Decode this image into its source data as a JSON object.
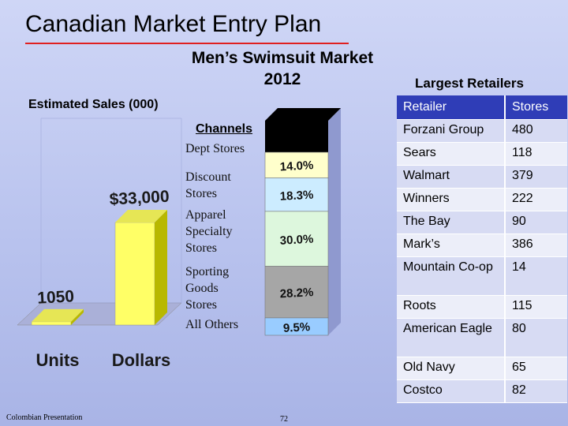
{
  "title": "Canadian Market Entry Plan",
  "subtitle_line1": "Men’s Swimsuit Market",
  "subtitle_line2": "2012",
  "sales_label": "Estimated Sales (000)",
  "footer_left": "Colombian Presentation",
  "page_number": "72",
  "retailers": {
    "heading": "Largest Retailers",
    "columns": [
      "Retailer",
      "Stores"
    ],
    "rows": [
      {
        "name": "Forzani Group",
        "stores": "480"
      },
      {
        "name": "Sears",
        "stores": "118"
      },
      {
        "name": "Walmart",
        "stores": "379"
      },
      {
        "name": "Winners",
        "stores": "222"
      },
      {
        "name": "The Bay",
        "stores": "90"
      },
      {
        "name": "Mark’s",
        "stores": "386"
      },
      {
        "name": "Mountain Co-op",
        "stores": "14"
      },
      {
        "name": "Roots",
        "stores": "115"
      },
      {
        "name": "American Eagle",
        "stores": "80"
      },
      {
        "name": "Old Navy",
        "stores": "65"
      },
      {
        "name": "Costco",
        "stores": "82"
      }
    ]
  },
  "chart_data": [
    {
      "type": "bar",
      "title": "Estimated Sales (000)",
      "categories": [
        "Units",
        "Dollars"
      ],
      "values": [
        1050,
        33000
      ],
      "value_labels": [
        "1050",
        "$33,000"
      ],
      "colors": {
        "bar": "#ffff66",
        "bar_side": "#b8b800"
      }
    },
    {
      "type": "bar",
      "stacked": true,
      "title": "Channels",
      "legend_title": "Channels",
      "series": [
        {
          "name": "Dept Stores",
          "value": 14.0,
          "label": "14.0%",
          "color": "#ffffcc"
        },
        {
          "name": "Discount Stores",
          "value": 18.3,
          "label": "18.3%",
          "color": "#ccecff"
        },
        {
          "name": "Apparel Specialty Stores",
          "value": 30.0,
          "label": "30.0%",
          "color": "#ddf7dd"
        },
        {
          "name": "Sporting Goods Stores",
          "value": 28.2,
          "label": "28.2%",
          "color": "#a6a6a6"
        },
        {
          "name": "All Others",
          "value": 9.5,
          "label": "9.5%",
          "color": "#99ccff"
        }
      ],
      "channel_legend_lines": [
        [
          "Dept Stores"
        ],
        [
          "Discount",
          "Stores"
        ],
        [
          "Apparel",
          "Specialty",
          "Stores"
        ],
        [
          "Sporting",
          "Goods",
          "Stores"
        ],
        [
          "All Others"
        ]
      ]
    }
  ]
}
